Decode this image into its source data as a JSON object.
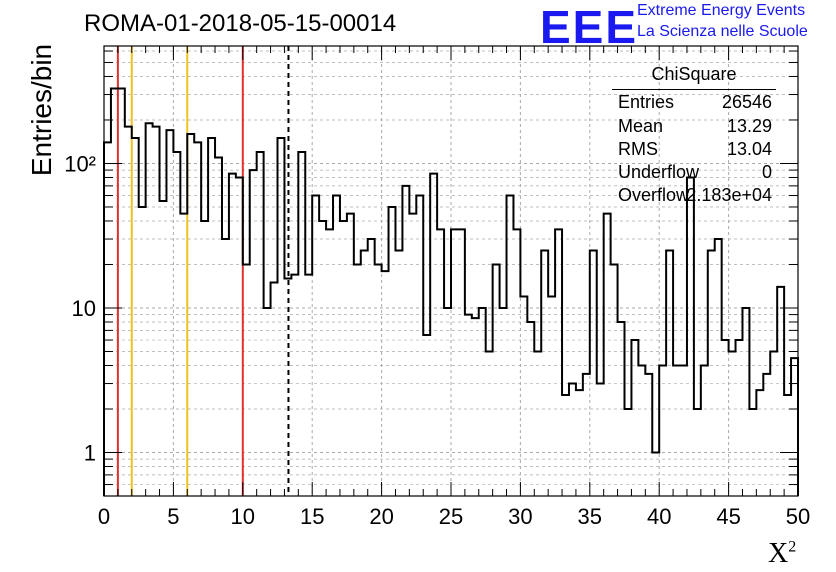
{
  "header": {
    "title": "ROMA-01-2018-05-15-00014",
    "logo_text": "EEE",
    "brand_line1": "Extreme Energy Events",
    "brand_line2": "La Scienza nelle Scuole"
  },
  "stats_box": {
    "title": "ChiSquare",
    "rows": [
      {
        "key": "Entries",
        "value": "26546"
      },
      {
        "key": "Mean",
        "value": "13.29"
      },
      {
        "key": "RMS",
        "value": "13.04"
      },
      {
        "key": "Underflow",
        "value": "0"
      },
      {
        "key": "Overflow",
        "value": "2.183e+04"
      }
    ]
  },
  "colors": {
    "histogram": "#000000",
    "red_line": "#e03030",
    "yellow_line": "#f0c020",
    "grid": "#aaaaaa",
    "logo": "#1a1af0"
  },
  "chart_data": {
    "type": "bar",
    "style": "step-histogram",
    "title": "ROMA-01-2018-05-15-00014",
    "xlabel": "X²",
    "ylabel": "Entries/bin",
    "xlim": [
      0,
      50
    ],
    "ylim": [
      0.5,
      650
    ],
    "yscale": "log",
    "grid": true,
    "bin_width": 0.5,
    "x_ticks": [
      "0",
      "5",
      "10",
      "15",
      "20",
      "25",
      "30",
      "35",
      "40",
      "45",
      "50"
    ],
    "y_ticks": [
      "1",
      "10",
      "10²"
    ],
    "values": [
      140,
      330,
      330,
      180,
      150,
      50,
      190,
      180,
      55,
      170,
      120,
      45,
      160,
      140,
      40,
      150,
      110,
      30,
      85,
      80,
      20,
      90,
      120,
      10,
      15,
      150,
      16,
      17,
      120,
      17,
      60,
      40,
      35,
      60,
      40,
      45,
      20,
      25,
      30,
      20,
      18,
      50,
      25,
      70,
      45,
      60,
      6.5,
      85,
      35,
      10,
      35,
      35,
      9,
      8.5,
      10,
      5,
      20,
      10,
      60,
      35,
      12,
      8,
      5,
      25,
      12,
      35,
      2.5,
      3,
      2.7,
      3.5,
      25,
      3,
      45,
      20,
      8,
      2,
      6,
      4,
      3.5,
      1,
      4,
      25,
      4,
      4,
      80,
      2,
      4,
      25,
      30,
      6,
      5,
      6,
      10,
      2,
      2.7,
      3.5,
      5,
      14,
      2.5,
      4.5
    ],
    "vertical_lines": [
      {
        "x": 1,
        "color": "red",
        "style": "solid"
      },
      {
        "x": 2,
        "color": "yellow",
        "style": "solid"
      },
      {
        "x": 6,
        "color": "yellow",
        "style": "solid"
      },
      {
        "x": 10,
        "color": "red",
        "style": "solid"
      },
      {
        "x": 13.29,
        "color": "black",
        "style": "dashed"
      }
    ]
  }
}
